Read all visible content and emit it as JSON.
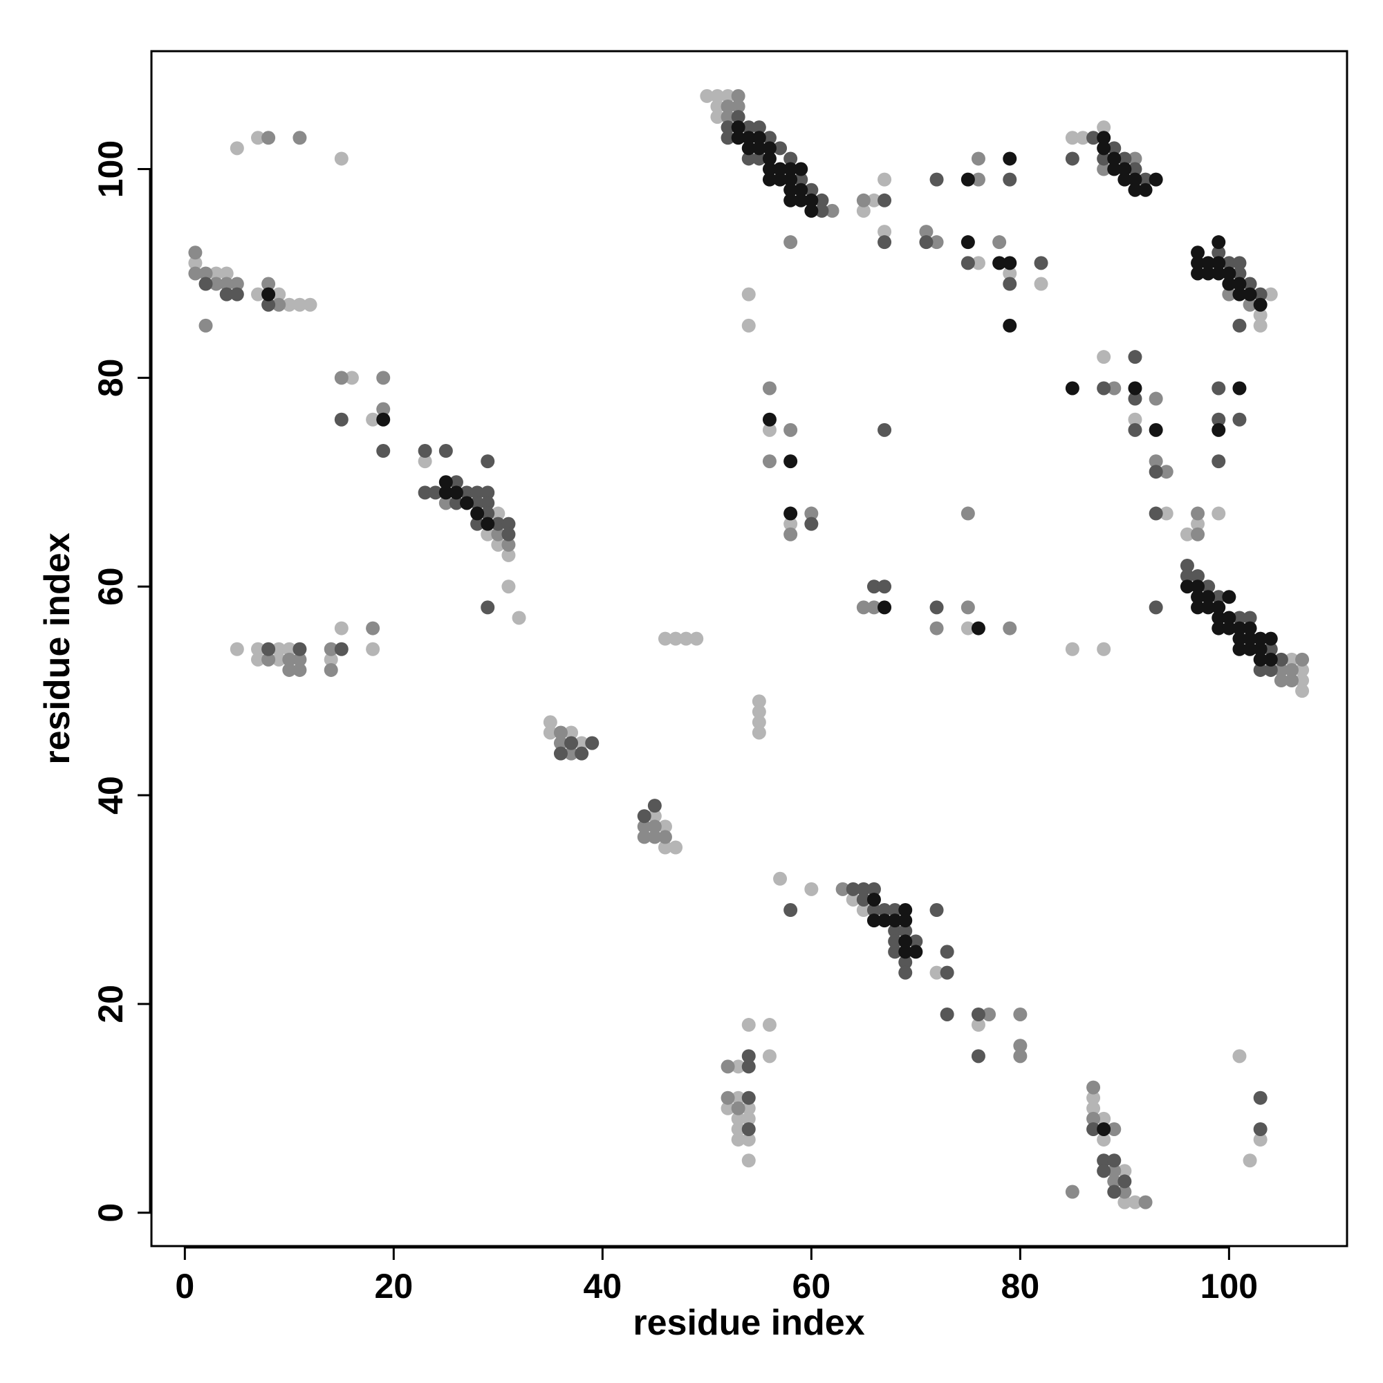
{
  "chart_data": {
    "type": "scatter",
    "x_label": "residue index",
    "y_label": "residue index",
    "xlim": [
      -3.2,
      111.3
    ],
    "ylim": [
      -3.2,
      111.3
    ],
    "xticks": [
      0,
      20,
      40,
      60,
      80,
      100
    ],
    "yticks": [
      0,
      20,
      40,
      60,
      80,
      100
    ],
    "series": [
      {
        "color": "#b5b5b5",
        "x": [
          5,
          7,
          15,
          1,
          3,
          4,
          7,
          9,
          10,
          11,
          12,
          16,
          18,
          23,
          29,
          30,
          30,
          31,
          31,
          32,
          5,
          7,
          7,
          9,
          9,
          10,
          14,
          15,
          18,
          35,
          35,
          37,
          38,
          45,
          46,
          46,
          47,
          46,
          47,
          48,
          49,
          55,
          55,
          55,
          55,
          57,
          60,
          64,
          65,
          72,
          76,
          54,
          56,
          56,
          53,
          52,
          53,
          53,
          53,
          53,
          54,
          54,
          54,
          54,
          87,
          87,
          88,
          88,
          90,
          90,
          91,
          101,
          102,
          103,
          50,
          51,
          51,
          51,
          52,
          54,
          54,
          65,
          66,
          67,
          67,
          76,
          79,
          82,
          56,
          58,
          75,
          85,
          86,
          88,
          88,
          91,
          94,
          96,
          97,
          99,
          85,
          88,
          103,
          103,
          104,
          106,
          107,
          107,
          107
        ],
        "values": [
          102,
          103,
          101,
          91,
          90,
          90,
          88,
          88,
          87,
          87,
          87,
          80,
          76,
          72,
          65,
          67,
          64,
          63,
          60,
          57,
          54,
          54,
          53,
          54,
          53,
          54,
          53,
          56,
          54,
          47,
          46,
          46,
          45,
          38,
          37,
          35,
          35,
          55,
          55,
          55,
          55,
          49,
          48,
          47,
          46,
          32,
          31,
          30,
          29,
          23,
          18,
          18,
          18,
          15,
          14,
          10,
          11,
          9,
          8,
          7,
          10,
          9,
          7,
          5,
          11,
          10,
          9,
          7,
          4,
          1,
          1,
          15,
          5,
          7,
          107,
          107,
          106,
          105,
          107,
          88,
          85,
          96,
          97,
          99,
          94,
          91,
          90,
          89,
          75,
          66,
          56,
          103,
          103,
          104,
          82,
          76,
          67,
          65,
          66,
          67,
          54,
          54,
          86,
          85,
          88,
          53,
          52,
          51,
          50
        ]
      },
      {
        "color": "#8a8a8a",
        "x": [
          8,
          11,
          1,
          1,
          2,
          3,
          4,
          5,
          2,
          8,
          9,
          15,
          19,
          19,
          25,
          30,
          31,
          8,
          10,
          10,
          11,
          11,
          14,
          14,
          18,
          36,
          36,
          37,
          44,
          44,
          45,
          45,
          46,
          63,
          77,
          80,
          80,
          80,
          52,
          52,
          53,
          85,
          87,
          87,
          89,
          89,
          89,
          90,
          92,
          52,
          52,
          53,
          53,
          62,
          58,
          65,
          71,
          72,
          76,
          76,
          78,
          56,
          56,
          58,
          58,
          60,
          65,
          66,
          72,
          75,
          75,
          79,
          88,
          91,
          89,
          93,
          93,
          94,
          97,
          97,
          100,
          102,
          105,
          105,
          106,
          106,
          107
        ],
        "values": [
          103,
          103,
          92,
          90,
          90,
          89,
          89,
          89,
          85,
          89,
          87,
          80,
          80,
          77,
          68,
          65,
          64,
          53,
          53,
          52,
          53,
          52,
          54,
          52,
          56,
          46,
          45,
          44,
          37,
          36,
          37,
          36,
          36,
          31,
          19,
          19,
          16,
          15,
          14,
          11,
          10,
          2,
          12,
          9,
          8,
          4,
          3,
          2,
          1,
          106,
          105,
          107,
          106,
          96,
          93,
          97,
          94,
          93,
          101,
          99,
          93,
          79,
          72,
          75,
          65,
          67,
          58,
          58,
          56,
          67,
          58,
          56,
          100,
          101,
          79,
          78,
          72,
          71,
          67,
          65,
          88,
          87,
          52,
          51,
          52,
          51,
          53
        ]
      },
      {
        "color": "#575757",
        "x": [
          2,
          4,
          5,
          8,
          15,
          19,
          23,
          25,
          23,
          24,
          26,
          26,
          27,
          28,
          28,
          28,
          29,
          29,
          29,
          29,
          30,
          31,
          31,
          29,
          8,
          11,
          15,
          36,
          37,
          38,
          39,
          44,
          45,
          58,
          64,
          65,
          65,
          66,
          66,
          67,
          68,
          68,
          68,
          68,
          69,
          69,
          69,
          70,
          72,
          73,
          73,
          73,
          76,
          76,
          54,
          54,
          54,
          54,
          87,
          88,
          88,
          89,
          89,
          90,
          103,
          103,
          52,
          52,
          53,
          54,
          54,
          55,
          55,
          56,
          57,
          58,
          59,
          60,
          61,
          61,
          67,
          67,
          71,
          72,
          75,
          79,
          79,
          82,
          60,
          67,
          66,
          67,
          72,
          85,
          87,
          88,
          89,
          90,
          91,
          92,
          88,
          91,
          91,
          91,
          93,
          93,
          99,
          99,
          99,
          101,
          93,
          96,
          96,
          97,
          98,
          99,
          101,
          102,
          103,
          104,
          104,
          105,
          99,
          100,
          101,
          101,
          102,
          103,
          101
        ],
        "values": [
          89,
          88,
          88,
          87,
          76,
          73,
          73,
          73,
          69,
          69,
          70,
          68,
          69,
          69,
          68,
          66,
          69,
          68,
          67,
          72,
          66,
          66,
          65,
          58,
          54,
          54,
          54,
          44,
          45,
          44,
          45,
          38,
          39,
          29,
          31,
          31,
          30,
          31,
          29,
          29,
          29,
          27,
          26,
          25,
          27,
          24,
          23,
          26,
          29,
          25,
          23,
          19,
          19,
          15,
          14,
          15,
          11,
          8,
          8,
          5,
          4,
          5,
          2,
          3,
          11,
          8,
          104,
          103,
          105,
          104,
          101,
          104,
          101,
          103,
          102,
          101,
          99,
          98,
          97,
          96,
          97,
          93,
          93,
          99,
          91,
          99,
          89,
          91,
          66,
          75,
          60,
          60,
          58,
          101,
          103,
          101,
          102,
          101,
          100,
          99,
          79,
          82,
          78,
          75,
          71,
          67,
          79,
          76,
          72,
          76,
          58,
          62,
          61,
          61,
          60,
          59,
          57,
          57,
          52,
          54,
          52,
          53,
          92,
          91,
          91,
          90,
          89,
          88,
          85
        ]
      },
      {
        "color": "#141414",
        "x": [
          8,
          19,
          25,
          25,
          26,
          27,
          28,
          29,
          66,
          66,
          67,
          68,
          69,
          69,
          69,
          69,
          70,
          88,
          53,
          53,
          54,
          54,
          55,
          55,
          56,
          56,
          56,
          56,
          57,
          57,
          58,
          58,
          58,
          58,
          59,
          59,
          59,
          60,
          60,
          75,
          75,
          78,
          79,
          79,
          79,
          56,
          58,
          58,
          67,
          76,
          88,
          88,
          89,
          89,
          90,
          90,
          91,
          91,
          92,
          93,
          85,
          91,
          93,
          99,
          101,
          96,
          97,
          97,
          97,
          98,
          98,
          99,
          99,
          99,
          100,
          100,
          100,
          101,
          101,
          101,
          102,
          102,
          102,
          103,
          103,
          103,
          104,
          104,
          97,
          97,
          97,
          98,
          98,
          99,
          99,
          99,
          100,
          100,
          101,
          101,
          102,
          103
        ],
        "values": [
          88,
          76,
          70,
          69,
          69,
          68,
          67,
          66,
          30,
          28,
          28,
          28,
          29,
          28,
          26,
          25,
          25,
          8,
          104,
          103,
          103,
          102,
          103,
          102,
          102,
          101,
          100,
          99,
          100,
          99,
          100,
          99,
          98,
          97,
          100,
          98,
          97,
          97,
          96,
          99,
          93,
          91,
          101,
          91,
          85,
          76,
          72,
          67,
          58,
          56,
          103,
          102,
          101,
          100,
          100,
          99,
          99,
          98,
          98,
          99,
          79,
          79,
          75,
          75,
          79,
          60,
          60,
          59,
          58,
          59,
          58,
          58,
          57,
          56,
          59,
          57,
          56,
          56,
          55,
          54,
          56,
          55,
          54,
          55,
          54,
          53,
          55,
          53,
          92,
          91,
          90,
          91,
          90,
          93,
          91,
          90,
          90,
          89,
          89,
          88,
          88,
          87
        ]
      }
    ]
  }
}
